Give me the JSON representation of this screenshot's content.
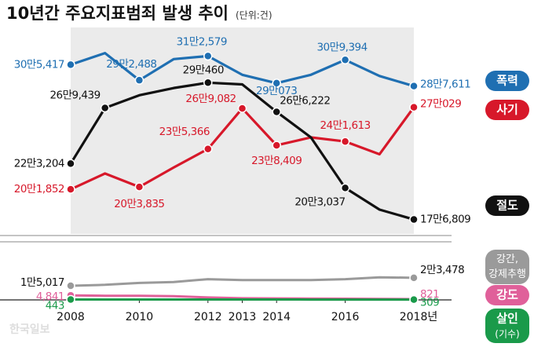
{
  "chart_data": {
    "type": "line",
    "title": "10년간 주요지표범죄 발생 추이",
    "unit": "(단위:건)",
    "source": "한국일보",
    "x": [
      2008,
      2009,
      2010,
      2011,
      2012,
      2013,
      2014,
      2015,
      2016,
      2017,
      2018
    ],
    "xlim": [
      2008,
      2018
    ],
    "xticks": [
      2008,
      2010,
      2012,
      2013,
      2014,
      2016,
      {
        "value": 2018,
        "label": "2018년"
      }
    ],
    "ylim": [
      170000,
      320000
    ],
    "y2lim": [
      0,
      25000
    ],
    "series": [
      {
        "name": "폭력",
        "color": "#1f6fb2",
        "values": [
          305417,
          315000,
          292488,
          310000,
          312579,
          297000,
          290073,
          297000,
          309394,
          296000,
          287611
        ],
        "value_labels": [
          "30만5,417",
          null,
          "29만2,488",
          null,
          "31만2,579",
          null,
          "29만073",
          null,
          "30만9,394",
          null,
          "28만7,611"
        ]
      },
      {
        "name": "사기",
        "color": "#d7182a",
        "values": [
          201852,
          215000,
          203835,
          220000,
          235366,
          269082,
          238409,
          245000,
          241613,
          231000,
          270029
        ],
        "value_labels": [
          "20만1,852",
          null,
          "20만3,835",
          null,
          "23만5,366",
          "26만9,082",
          "23만8,409",
          null,
          "24만1,613",
          null,
          "27만029"
        ]
      },
      {
        "name": "절도",
        "color": "#111111",
        "values": [
          223204,
          269439,
          280000,
          286000,
          290460,
          289000,
          266222,
          245000,
          203037,
          185000,
          176809
        ],
        "value_labels": [
          "22만3,204",
          "26만9,439",
          null,
          null,
          "29만460",
          null,
          "26만6,222",
          null,
          "20만3,037",
          null,
          "17만6,809"
        ]
      },
      {
        "name": "강간, 강제추행",
        "color": "#9a9a9a",
        "axis": "y2",
        "values": [
          15017,
          16000,
          18000,
          19000,
          22000,
          21000,
          21000,
          21000,
          22000,
          24000,
          23478
        ],
        "value_labels": [
          "1만5,017",
          null,
          null,
          null,
          null,
          null,
          null,
          null,
          null,
          null,
          "2만3,478"
        ]
      },
      {
        "name": "강도",
        "color": "#e0609a",
        "axis": "y2",
        "values": [
          4841,
          4400,
          4400,
          4000,
          2600,
          1800,
          1600,
          1400,
          1200,
          1000,
          821
        ],
        "value_labels": [
          "4,841",
          null,
          null,
          null,
          null,
          null,
          null,
          null,
          null,
          null,
          "821"
        ]
      },
      {
        "name": "살인",
        "note": "(기수)",
        "color": "#1a9a4a",
        "axis": "y2",
        "values": [
          443,
          430,
          420,
          410,
          400,
          390,
          380,
          360,
          340,
          330,
          309
        ],
        "value_labels": [
          "443",
          null,
          null,
          null,
          null,
          null,
          null,
          null,
          null,
          null,
          "309"
        ]
      }
    ]
  }
}
